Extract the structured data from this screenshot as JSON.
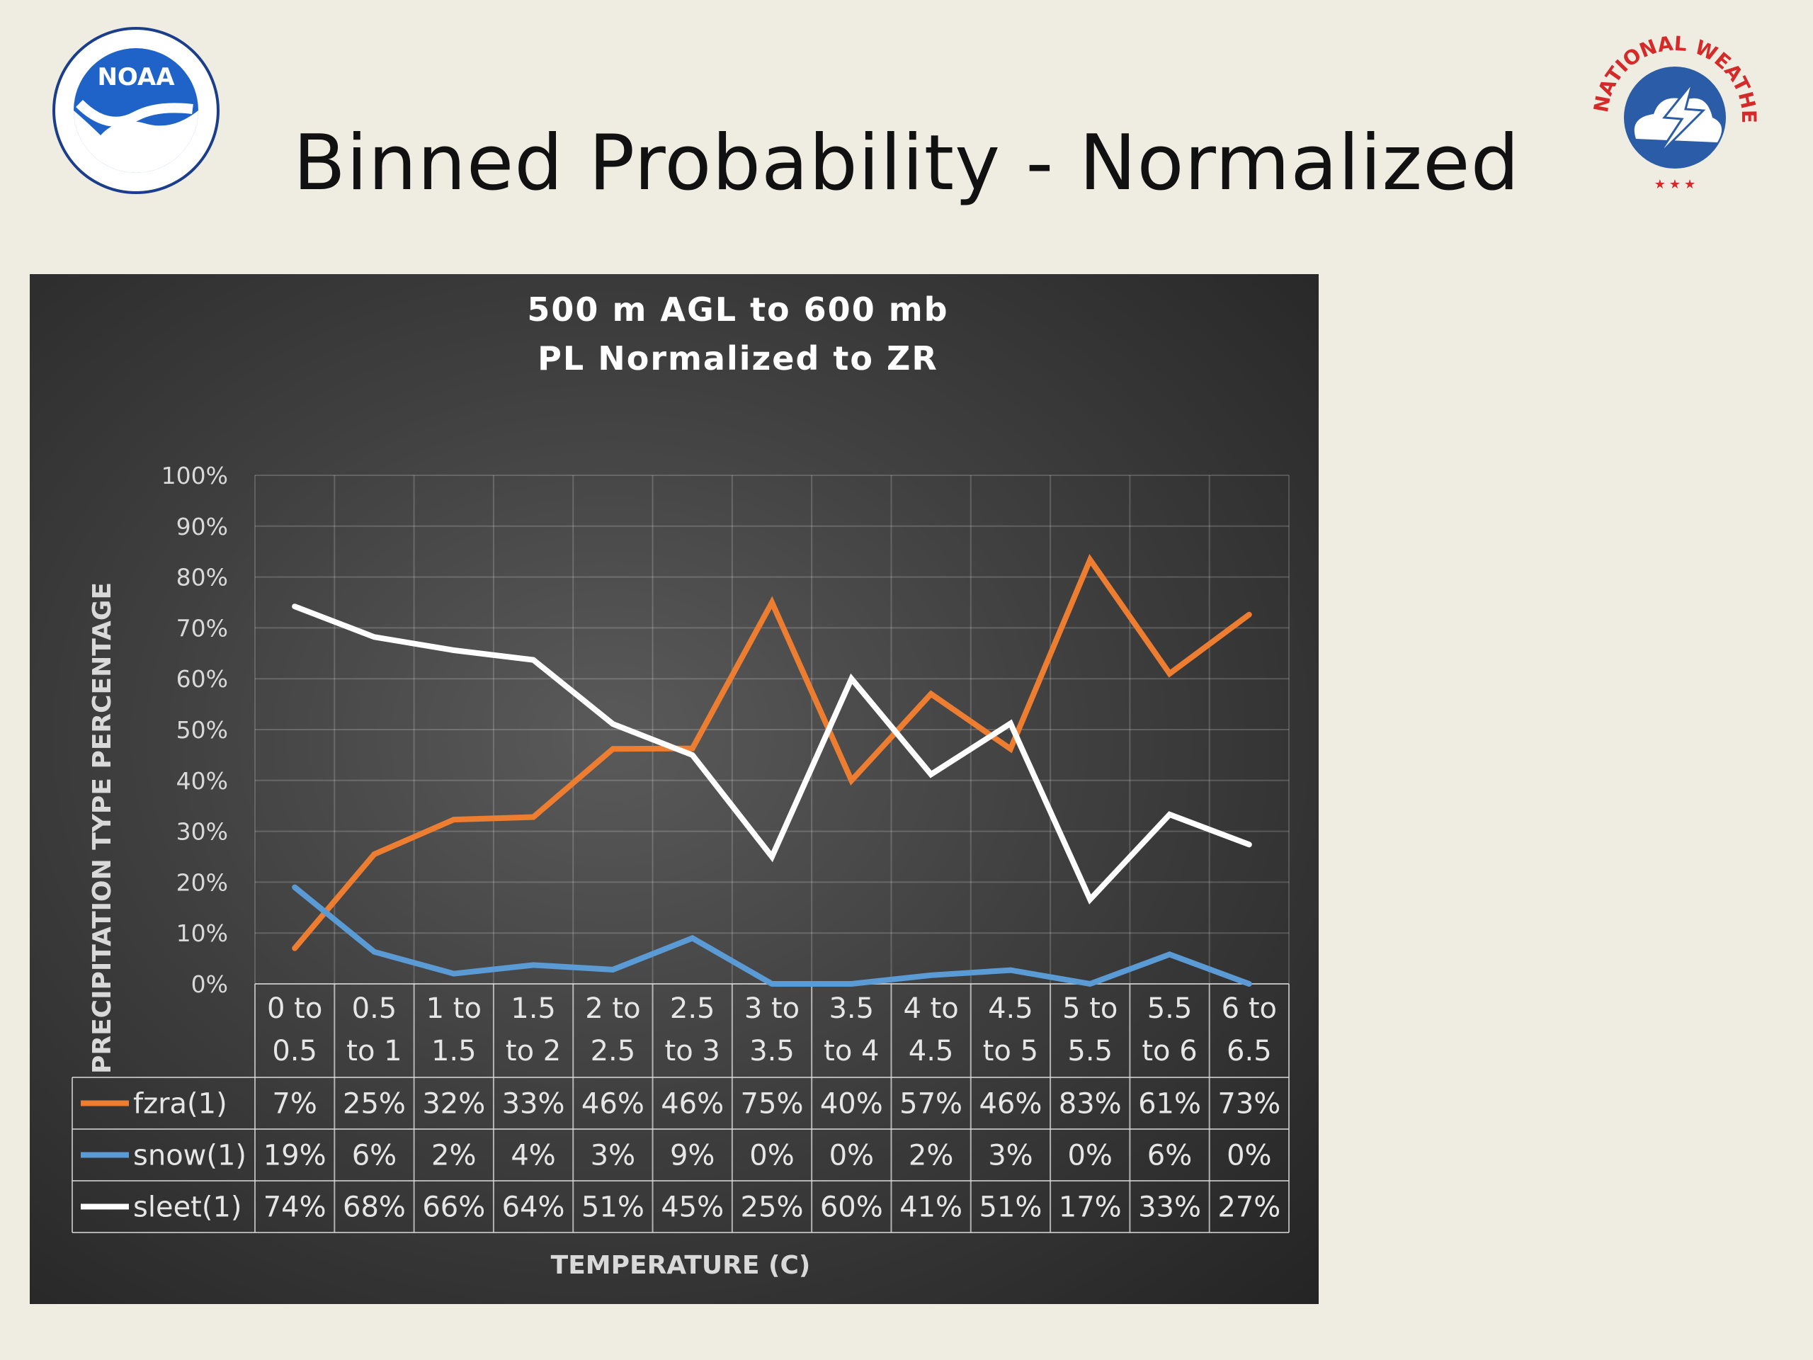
{
  "slide": {
    "title": "Binned Probability - Normalized"
  },
  "logos": {
    "noaa_text": "NOAA",
    "nws_text": "NATIONAL WEATHER SERVICE"
  },
  "chart_data": {
    "type": "line",
    "title_line1": "500 m AGL to 600 mb",
    "title_line2": "PL Normalized to ZR",
    "xlabel": "TEMPERATURE (C)",
    "ylabel": "PRECIPITATION TYPE PERCENTAGE",
    "ylim": [
      0,
      100
    ],
    "yticks": [
      "0%",
      "10%",
      "20%",
      "30%",
      "40%",
      "50%",
      "60%",
      "70%",
      "80%",
      "90%",
      "100%"
    ],
    "categories": [
      [
        "0 to",
        "0.5"
      ],
      [
        "0.5",
        "to 1"
      ],
      [
        "1 to",
        "1.5"
      ],
      [
        "1.5",
        "to 2"
      ],
      [
        "2 to",
        "2.5"
      ],
      [
        "2.5",
        "to 3"
      ],
      [
        "3 to",
        "3.5"
      ],
      [
        "3.5",
        "to 4"
      ],
      [
        "4 to",
        "4.5"
      ],
      [
        "4.5",
        "to 5"
      ],
      [
        "5 to",
        "5.5"
      ],
      [
        "5.5",
        "to 6"
      ],
      [
        "6 to",
        "6.5"
      ]
    ],
    "grid": true,
    "legend": "data-table",
    "series": [
      {
        "name": "fzra(1)",
        "color": "#ed7d31",
        "values": [
          7,
          25.5,
          32.3,
          32.8,
          46.2,
          46.3,
          75,
          40,
          57,
          46.2,
          83.4,
          61,
          72.6
        ],
        "labels": [
          "7%",
          "25%",
          "32%",
          "33%",
          "46%",
          "46%",
          "75%",
          "40%",
          "57%",
          "46%",
          "83%",
          "61%",
          "73%"
        ]
      },
      {
        "name": "snow(1)",
        "color": "#5b9bd5",
        "values": [
          19,
          6.3,
          2,
          3.7,
          2.8,
          9,
          0,
          0,
          1.7,
          2.7,
          0,
          5.8,
          0
        ],
        "labels": [
          "19%",
          "6%",
          "2%",
          "4%",
          "3%",
          "9%",
          "0%",
          "0%",
          "2%",
          "3%",
          "0%",
          "6%",
          "0%"
        ]
      },
      {
        "name": "sleet(1)",
        "color": "#ffffff",
        "values": [
          74.2,
          68.2,
          65.6,
          63.7,
          51.1,
          45,
          25,
          60,
          41.2,
          51.2,
          16.6,
          33.3,
          27.4
        ],
        "labels": [
          "74%",
          "68%",
          "66%",
          "64%",
          "51%",
          "45%",
          "25%",
          "60%",
          "41%",
          "51%",
          "17%",
          "33%",
          "27%"
        ]
      }
    ]
  }
}
